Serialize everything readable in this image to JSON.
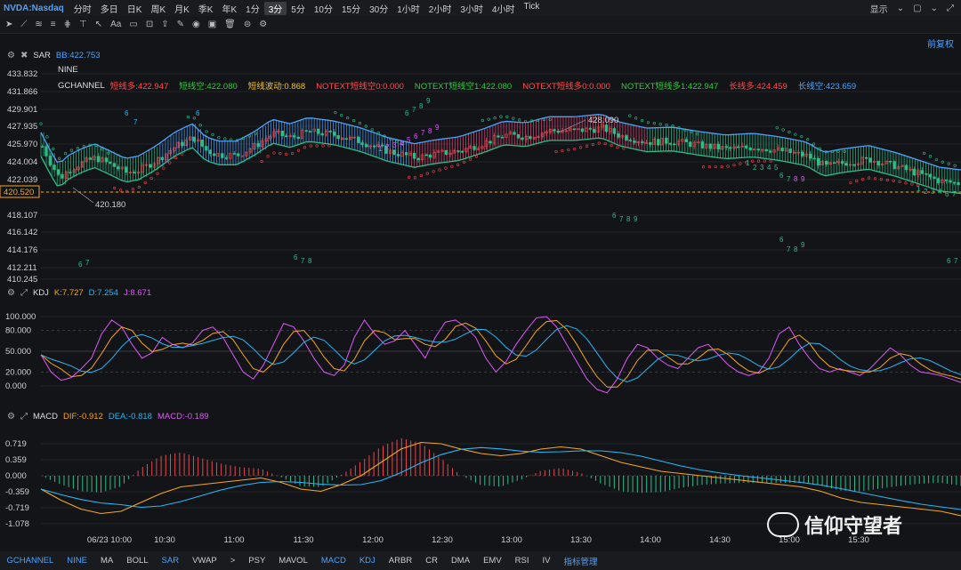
{
  "symbol": "NVDA:Nasdaq",
  "periods": [
    "分时",
    "多日",
    "日K",
    "周K",
    "月K",
    "季K",
    "年K",
    "1分",
    "3分",
    "5分",
    "10分",
    "15分",
    "30分",
    "1小时",
    "2小时",
    "3小时",
    "4小时",
    "Tick"
  ],
  "active_period": "3分",
  "top_right": {
    "display": "显示",
    "fuquan": "前复权"
  },
  "toolbar_icons": [
    "cursor-icon",
    "trendline-icon",
    "multi-line-icon",
    "fib-icon",
    "channel-icon",
    "hline-icon",
    "arrow-icon",
    "text-icon",
    "note-icon",
    "measure-icon",
    "share-icon",
    "brush-icon",
    "eye-icon",
    "lock-icon",
    "trash-icon",
    "magnet-icon",
    "settings-icon"
  ],
  "toolbar_text": {
    "text_tool": "Aa"
  },
  "main_panel": {
    "ind1": {
      "name": "SAR",
      "value": "BB:422.753"
    },
    "ind2": {
      "name": "NINE"
    },
    "ind3": {
      "name": "GCHANNEL"
    },
    "gch_values": [
      {
        "text": "短线多:422.947",
        "color": "#ff4d4d"
      },
      {
        "text": "短线空:422.080",
        "color": "#2ecc40"
      },
      {
        "text": "短线波动:0.868",
        "color": "#f5c518"
      },
      {
        "text": "NOTEXT短线空0:0.000",
        "color": "#ff4d4d"
      },
      {
        "text": "NOTEXT短线空1:422.080",
        "color": "#2ecc40"
      },
      {
        "text": "NOTEXT短线多0:0.000",
        "color": "#ff4d4d"
      },
      {
        "text": "NOTEXT短线多1:422.947",
        "color": "#2ecc40"
      },
      {
        "text": "长线多:424.459",
        "color": "#ff4d4d"
      },
      {
        "text": "长线空:423.659",
        "color": "#4aa3ff"
      }
    ],
    "y_ticks": [
      "433.832",
      "431.866",
      "429.901",
      "427.935",
      "425.970",
      "424.004",
      "422.039",
      "420.520",
      "418.107",
      "416.142",
      "414.176",
      "412.211",
      "410.245"
    ],
    "current_price": "420.520",
    "high_label": "428.090",
    "low_label": "420.180"
  },
  "kdj_panel": {
    "name": "KDJ",
    "k": "K:7.727",
    "d": "D:7.254",
    "j": "J:8.671",
    "y_ticks": [
      "100.000",
      "80.000",
      "50.000",
      "20.000",
      "0.000"
    ]
  },
  "macd_panel": {
    "name": "MACD",
    "dif": "DIF:-0.912",
    "dea": "DEA:-0.818",
    "macd": "MACD:-0.189",
    "y_ticks": [
      "0.719",
      "0.359",
      "0.000",
      "-0.359",
      "-0.719",
      "-1.078"
    ]
  },
  "x_ticks": [
    "06/23 10:00",
    "10:30",
    "11:00",
    "11:30",
    "12:00",
    "12:30",
    "13:00",
    "13:30",
    "14:00",
    "14:30",
    "15:00",
    "15:30"
  ],
  "bottom_tabs": [
    "GCHANNEL",
    "NINE",
    "MA",
    "BOLL",
    "SAR",
    "VWAP",
    ">",
    "PSY",
    "MAVOL",
    "MACD",
    "KDJ",
    "ARBR",
    "CR",
    "DMA",
    "EMV",
    "RSI",
    "IV",
    "指标管理"
  ],
  "bottom_highlight": [
    "GCHANNEL",
    "NINE",
    "SAR",
    "MACD",
    "KDJ",
    "指标管理"
  ],
  "watermark": "信仰守望者",
  "colors": {
    "up": "#e8474c",
    "down": "#2ebd85",
    "k": "#f5a623",
    "d": "#29b6f6",
    "j": "#e056fd",
    "dif": "#f5a623",
    "dea": "#29b6f6"
  }
}
